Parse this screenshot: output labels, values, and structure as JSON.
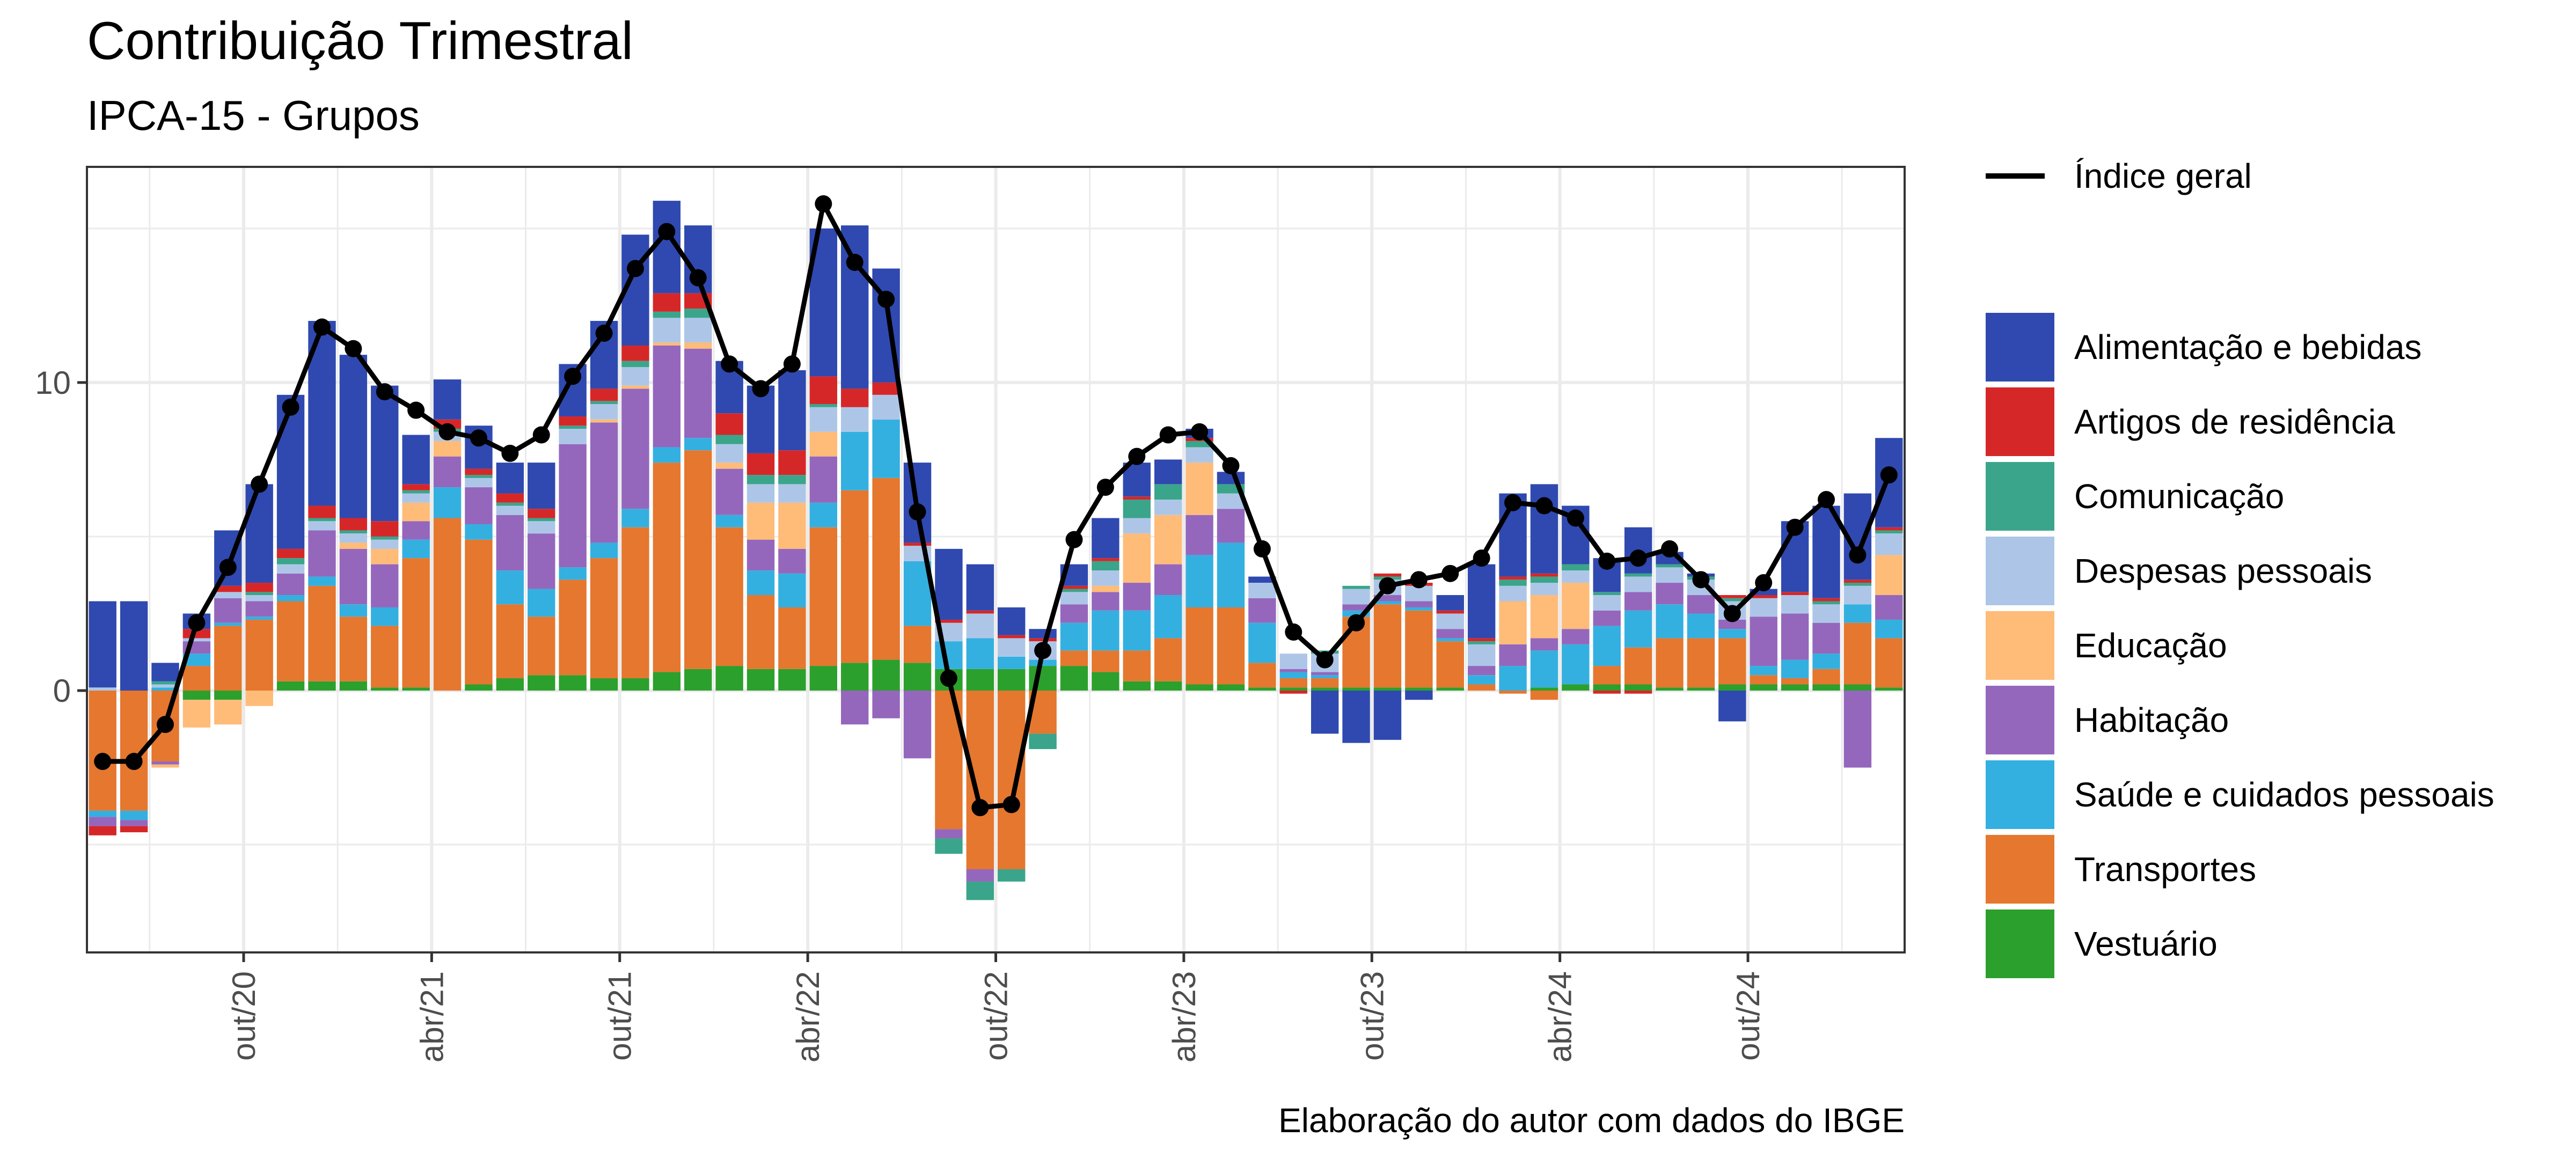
{
  "chart_data": {
    "type": "bar",
    "stacked": true,
    "title": "Contribuição Trimestral",
    "subtitle": "IPCA-15 - Grupos",
    "caption": "Elaboração do autor com dados do IBGE",
    "ylim": [
      -8.5,
      17
    ],
    "yticks": [
      0,
      10
    ],
    "xticks": [
      {
        "label": "out/20",
        "index": 4.5
      },
      {
        "label": "abr/21",
        "index": 10.5
      },
      {
        "label": "out/21",
        "index": 16.5
      },
      {
        "label": "abr/22",
        "index": 22.5
      },
      {
        "label": "out/22",
        "index": 28.5
      },
      {
        "label": "abr/23",
        "index": 34.5
      },
      {
        "label": "out/23",
        "index": 40.5
      },
      {
        "label": "abr/24",
        "index": 46.5
      },
      {
        "label": "out/24",
        "index": 52.5
      }
    ],
    "grid": true,
    "legend_position": "right",
    "line": {
      "name": "Índice geral",
      "color": "#000000",
      "values": [
        -2.3,
        -2.3,
        -1.1,
        2.2,
        4.0,
        6.7,
        9.2,
        11.8,
        11.1,
        9.7,
        9.1,
        8.4,
        8.2,
        7.7,
        8.3,
        10.2,
        11.6,
        13.7,
        14.9,
        13.4,
        10.6,
        9.8,
        10.6,
        15.8,
        13.9,
        12.7,
        5.8,
        0.4,
        -3.8,
        -3.7,
        1.3,
        4.9,
        6.6,
        7.6,
        8.3,
        8.4,
        7.3,
        4.6,
        1.9,
        1.0,
        2.2,
        3.4,
        3.6,
        3.8,
        4.3,
        6.1,
        6.0,
        5.6,
        4.2,
        4.3,
        4.6,
        3.6,
        2.5,
        3.5,
        5.3,
        6.2,
        4.4,
        7.0
      ]
    },
    "legend_title": "",
    "series": [
      {
        "name": "Alimentação e bebidas",
        "color": "#2f49b0",
        "values": [
          2.8,
          2.9,
          0.6,
          0.5,
          1.8,
          3.2,
          5.0,
          6.0,
          5.3,
          4.4,
          1.6,
          1.3,
          1.4,
          1.0,
          1.5,
          1.7,
          2.2,
          3.6,
          3.0,
          2.2,
          1.7,
          2.2,
          2.6,
          4.8,
          5.3,
          3.7,
          2.6,
          2.3,
          1.5,
          0.9,
          0.3,
          0.7,
          1.3,
          1.1,
          0.8,
          0.3,
          0.4,
          0.2,
          0.0,
          -1.4,
          -1.7,
          -1.6,
          -0.3,
          0.5,
          2.4,
          2.7,
          2.9,
          1.9,
          1.1,
          1.5,
          0.4,
          0.1,
          -1.0,
          0.2,
          2.3,
          3.0,
          2.8,
          2.9
        ]
      },
      {
        "name": "Artigos de residência",
        "color": "#d62728",
        "values": [
          -0.3,
          -0.2,
          0.0,
          0.3,
          0.2,
          0.3,
          0.3,
          0.4,
          0.4,
          0.5,
          0.2,
          0.3,
          0.2,
          0.3,
          0.3,
          0.3,
          0.4,
          0.5,
          0.6,
          0.5,
          0.7,
          0.7,
          0.8,
          0.9,
          0.6,
          0.4,
          0.1,
          0.1,
          0.1,
          0.1,
          0.1,
          0.1,
          0.1,
          0.1,
          0.0,
          0.1,
          0.0,
          0.0,
          -0.1,
          0.0,
          0.0,
          0.1,
          0.1,
          0.1,
          0.1,
          0.1,
          0.1,
          0.0,
          -0.1,
          -0.1,
          0.0,
          0.0,
          0.1,
          0.1,
          0.1,
          0.1,
          0.1,
          0.1
        ]
      },
      {
        "name": "Comunicação",
        "color": "#3aa58a",
        "values": [
          0.0,
          0.0,
          0.1,
          0.0,
          0.0,
          0.1,
          0.2,
          0.1,
          0.1,
          0.1,
          0.1,
          0.1,
          0.1,
          0.1,
          0.1,
          0.1,
          0.1,
          0.2,
          0.2,
          0.3,
          0.3,
          0.3,
          0.3,
          0.1,
          0.0,
          0.0,
          0.0,
          -0.5,
          -0.6,
          -0.4,
          -0.5,
          0.1,
          0.3,
          0.6,
          0.5,
          0.2,
          0.3,
          0.0,
          0.0,
          0.1,
          0.1,
          0.1,
          0.0,
          0.0,
          0.1,
          0.2,
          0.2,
          0.2,
          0.1,
          0.1,
          0.1,
          0.1,
          0.1,
          0.0,
          0.0,
          0.1,
          0.1,
          0.1
        ]
      },
      {
        "name": "Despesas pessoais",
        "color": "#adc6e8",
        "values": [
          0.1,
          0.0,
          0.1,
          0.1,
          0.2,
          0.2,
          0.3,
          0.3,
          0.3,
          0.3,
          0.3,
          0.3,
          0.3,
          0.3,
          0.4,
          0.5,
          0.5,
          0.6,
          0.8,
          0.8,
          0.6,
          0.6,
          0.6,
          0.8,
          0.8,
          0.8,
          0.5,
          0.6,
          0.8,
          0.6,
          0.6,
          0.4,
          0.5,
          0.5,
          0.5,
          0.5,
          0.5,
          0.5,
          0.5,
          0.6,
          0.5,
          0.5,
          0.5,
          0.5,
          0.7,
          0.5,
          0.4,
          0.4,
          0.5,
          0.5,
          0.5,
          0.5,
          0.6,
          0.6,
          0.6,
          0.6,
          0.6,
          0.7
        ]
      },
      {
        "name": "Educação",
        "color": "#ffbb78",
        "values": [
          0.0,
          0.0,
          -0.1,
          -0.9,
          -0.8,
          -0.5,
          0.0,
          0.0,
          0.2,
          0.5,
          0.6,
          0.5,
          0.0,
          0.0,
          0.0,
          0.0,
          0.1,
          0.1,
          0.1,
          0.2,
          0.2,
          1.2,
          1.5,
          0.8,
          0.0,
          0.0,
          0.0,
          0.0,
          0.0,
          0.0,
          0.0,
          0.0,
          0.2,
          1.6,
          1.6,
          1.7,
          0.0,
          0.0,
          0.0,
          0.0,
          0.0,
          0.0,
          0.0,
          0.0,
          0.0,
          1.4,
          1.4,
          1.5,
          0.0,
          0.0,
          0.0,
          0.0,
          0.0,
          0.0,
          0.0,
          0.0,
          0.0,
          1.3
        ]
      },
      {
        "name": "Habitação",
        "color": "#9467bd",
        "values": [
          -0.3,
          -0.2,
          -0.1,
          0.4,
          0.8,
          0.5,
          0.7,
          1.5,
          1.8,
          1.4,
          0.6,
          1.0,
          1.2,
          1.8,
          1.8,
          4.0,
          3.9,
          3.9,
          3.3,
          2.9,
          1.5,
          1.0,
          0.8,
          1.5,
          -1.1,
          -0.9,
          -2.2,
          -0.3,
          -0.4,
          0.0,
          0.0,
          0.6,
          0.6,
          0.9,
          1.0,
          1.3,
          1.1,
          0.8,
          0.1,
          0.1,
          0.2,
          0.2,
          0.2,
          0.3,
          0.3,
          0.7,
          0.4,
          0.5,
          0.5,
          0.6,
          0.7,
          0.6,
          0.3,
          1.6,
          1.5,
          1.0,
          -2.5,
          0.8
        ]
      },
      {
        "name": "Saúde e cuidados pessoais",
        "color": "#34b0e0",
        "values": [
          -0.2,
          -0.3,
          0.1,
          0.4,
          0.1,
          0.1,
          0.2,
          0.3,
          0.4,
          0.6,
          0.6,
          1.0,
          0.5,
          1.1,
          0.9,
          0.4,
          0.5,
          0.6,
          0.5,
          0.4,
          0.4,
          0.8,
          1.1,
          0.8,
          1.9,
          1.9,
          2.1,
          0.9,
          1.0,
          0.4,
          0.2,
          0.9,
          1.3,
          1.3,
          1.4,
          1.7,
          2.1,
          1.3,
          0.2,
          0.1,
          0.2,
          0.1,
          0.1,
          0.1,
          0.3,
          0.8,
          1.2,
          1.3,
          1.3,
          1.2,
          1.1,
          0.8,
          0.3,
          0.3,
          0.6,
          0.5,
          0.6,
          0.6
        ]
      },
      {
        "name": "Transportes",
        "color": "#e5772f",
        "values": [
          -3.9,
          -3.9,
          -2.3,
          0.8,
          2.1,
          2.3,
          2.6,
          3.1,
          2.1,
          2.0,
          4.2,
          5.6,
          4.7,
          2.4,
          1.9,
          3.1,
          3.9,
          4.9,
          6.8,
          7.1,
          4.5,
          2.4,
          2.0,
          4.5,
          5.6,
          5.9,
          1.2,
          -4.5,
          -5.8,
          -5.8,
          -1.4,
          0.5,
          0.7,
          1.0,
          1.4,
          2.5,
          2.5,
          0.8,
          0.3,
          0.3,
          2.3,
          2.7,
          2.5,
          1.5,
          0.2,
          -0.1,
          -0.3,
          0.0,
          0.6,
          1.2,
          1.6,
          1.6,
          1.5,
          0.3,
          0.2,
          0.5,
          2.0,
          1.6
        ]
      },
      {
        "name": "Vestuário",
        "color": "#2ca02c",
        "values": [
          0.0,
          0.0,
          0.0,
          -0.3,
          -0.3,
          0.0,
          0.3,
          0.3,
          0.3,
          0.1,
          0.1,
          0.0,
          0.2,
          0.4,
          0.5,
          0.5,
          0.4,
          0.4,
          0.6,
          0.7,
          0.8,
          0.7,
          0.7,
          0.8,
          0.9,
          1.0,
          0.9,
          0.7,
          0.7,
          0.7,
          0.8,
          0.8,
          0.6,
          0.3,
          0.3,
          0.2,
          0.2,
          0.1,
          0.1,
          0.1,
          0.1,
          0.1,
          0.1,
          0.1,
          0.0,
          0.0,
          0.1,
          0.2,
          0.2,
          0.2,
          0.1,
          0.1,
          0.2,
          0.2,
          0.2,
          0.2,
          0.2,
          0.1
        ]
      }
    ]
  }
}
